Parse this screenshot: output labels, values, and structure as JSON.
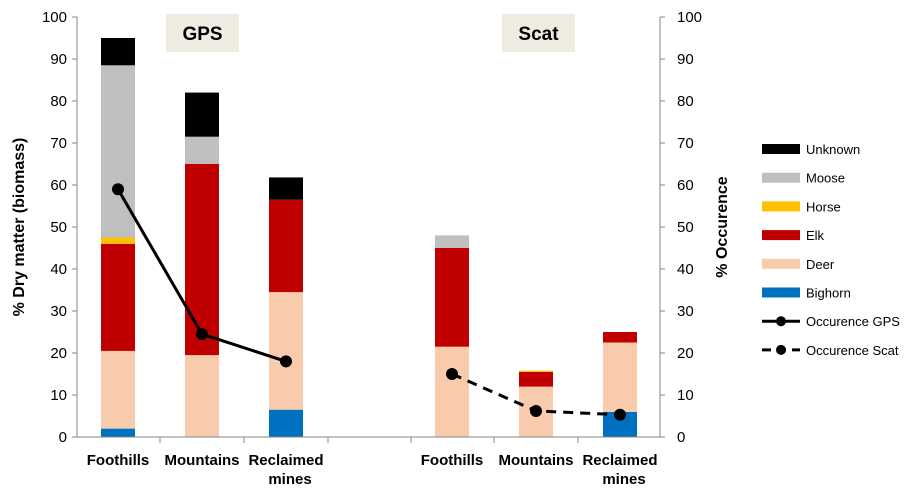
{
  "chart_data": {
    "type": "bar",
    "subtype": "stacked-bar-with-line-overlay",
    "y_left": {
      "label": "% Dry matter (biomass)",
      "range": [
        0,
        100
      ],
      "ticks": [
        0,
        10,
        20,
        30,
        40,
        50,
        60,
        70,
        80,
        90,
        100
      ]
    },
    "y_right": {
      "label": "% Occurence",
      "range": [
        0,
        100
      ],
      "ticks": [
        0,
        10,
        20,
        30,
        40,
        50,
        60,
        70,
        80,
        90,
        100
      ]
    },
    "grid": false,
    "legend_position": "right",
    "panels": [
      {
        "label": "GPS",
        "categories": [
          "Foothills",
          "Mountains",
          "Reclaimed mines"
        ]
      },
      {
        "label": "Scat",
        "categories": [
          "Foothills",
          "Mountains",
          "Reclaimed mines"
        ]
      }
    ],
    "series": [
      {
        "name": "Bighorn",
        "color": "#0070c0",
        "gps": [
          2,
          0,
          6.5
        ],
        "scat": [
          0,
          0,
          6
        ]
      },
      {
        "name": "Deer",
        "color": "#f8cbad",
        "gps": [
          18.5,
          19.5,
          28
        ],
        "scat": [
          21.5,
          12,
          16.5
        ]
      },
      {
        "name": "Elk",
        "color": "#c00000",
        "gps": [
          25.5,
          45.5,
          22
        ],
        "scat": [
          23.5,
          3.5,
          2.5
        ]
      },
      {
        "name": "Horse",
        "color": "#ffc000",
        "gps": [
          1.5,
          0,
          0
        ],
        "scat": [
          0,
          0.3,
          0
        ]
      },
      {
        "name": "Moose",
        "color": "#bfbfbf",
        "gps": [
          41,
          6.5,
          0
        ],
        "scat": [
          3,
          0,
          0
        ]
      },
      {
        "name": "Unknown",
        "color": "#000000",
        "gps": [
          6.5,
          10.5,
          5.3
        ],
        "scat": [
          0,
          0,
          0
        ]
      }
    ],
    "lines": [
      {
        "name": "Occurence GPS",
        "panel": "gps",
        "style": "solid",
        "values": [
          59,
          24.5,
          18
        ]
      },
      {
        "name": "Occurence Scat",
        "panel": "scat",
        "style": "dashed",
        "values": [
          15,
          6.2,
          5.3
        ]
      }
    ],
    "legend_order": [
      "Unknown",
      "Moose",
      "Horse",
      "Elk",
      "Deer",
      "Bighorn",
      "Occurence GPS",
      "Occurence Scat"
    ]
  }
}
